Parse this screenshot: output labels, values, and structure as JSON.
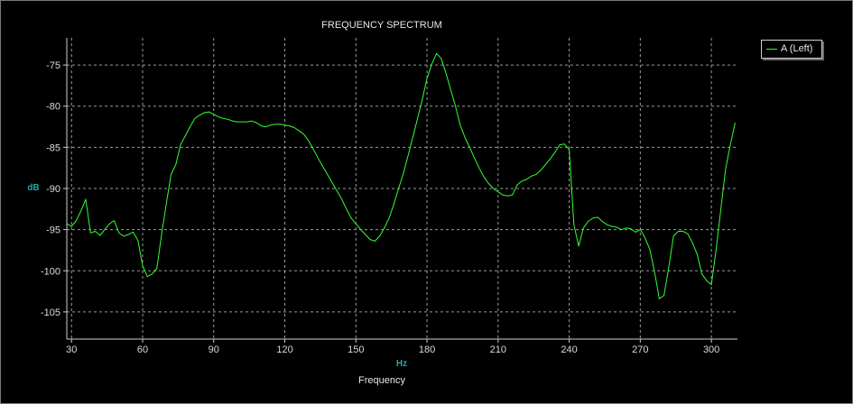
{
  "chart_data": {
    "type": "line",
    "title": "FREQUENCY SPECTRUM",
    "xlabel": "Frequency",
    "xunit": "Hz",
    "ylabel": "dB",
    "xlim": [
      28,
      311
    ],
    "ylim": [
      -108.3,
      -71.7
    ],
    "grid": true,
    "legend_position": "top-right",
    "xticks": [
      30,
      60,
      90,
      120,
      150,
      180,
      210,
      240,
      270,
      300
    ],
    "yticks": [
      -75,
      -80,
      -85,
      -90,
      -95,
      -100,
      -105
    ],
    "colors": {
      "series": "#33ff33",
      "axis_text": "#dcdcdc",
      "unit_text": "#2aa6a6",
      "grid": "#9a9a9a"
    },
    "series": [
      {
        "name": "A (Left)",
        "x": [
          28,
          30,
          32,
          34,
          36,
          38,
          40,
          42,
          44,
          46,
          48,
          50,
          52,
          54,
          56,
          58,
          60,
          62,
          64,
          66,
          68,
          70,
          72,
          74,
          76,
          78,
          80,
          82,
          84,
          86,
          88,
          90,
          92,
          94,
          96,
          98,
          100,
          102,
          104,
          106,
          108,
          110,
          112,
          114,
          116,
          118,
          120,
          122,
          124,
          126,
          128,
          130,
          132,
          134,
          136,
          138,
          140,
          142,
          144,
          146,
          148,
          150,
          152,
          154,
          156,
          158,
          160,
          162,
          164,
          166,
          168,
          170,
          172,
          174,
          176,
          178,
          180,
          182,
          184,
          186,
          188,
          190,
          192,
          194,
          196,
          198,
          200,
          202,
          204,
          206,
          208,
          210,
          212,
          214,
          216,
          218,
          220,
          222,
          224,
          226,
          228,
          230,
          232,
          234,
          236,
          238,
          240,
          242,
          244,
          246,
          248,
          250,
          252,
          254,
          256,
          258,
          260,
          262,
          264,
          266,
          268,
          270,
          272,
          274,
          276,
          278,
          280,
          282,
          284,
          286,
          288,
          290,
          292,
          294,
          296,
          298,
          300,
          302,
          304,
          306,
          308,
          310
        ],
        "values": [
          -94.3,
          -94.6,
          -93.9,
          -92.7,
          -91.3,
          -95.4,
          -95.2,
          -95.7,
          -95.0,
          -94.3,
          -93.9,
          -95.4,
          -95.8,
          -95.6,
          -95.3,
          -96.3,
          -99.4,
          -100.7,
          -100.4,
          -99.7,
          -95.6,
          -91.8,
          -88.3,
          -87.1,
          -84.7,
          -83.6,
          -82.5,
          -81.5,
          -81.1,
          -80.8,
          -80.7,
          -81.0,
          -81.3,
          -81.5,
          -81.6,
          -81.8,
          -81.9,
          -81.9,
          -81.9,
          -81.8,
          -82.0,
          -82.4,
          -82.5,
          -82.3,
          -82.2,
          -82.2,
          -82.3,
          -82.4,
          -82.6,
          -83.0,
          -83.4,
          -84.2,
          -85.2,
          -86.3,
          -87.3,
          -88.3,
          -89.3,
          -90.3,
          -91.3,
          -92.5,
          -93.6,
          -94.3,
          -95.0,
          -95.6,
          -96.2,
          -96.4,
          -95.8,
          -94.8,
          -93.6,
          -91.9,
          -90.0,
          -88.2,
          -86.0,
          -83.8,
          -81.5,
          -79.2,
          -76.6,
          -74.9,
          -73.6,
          -74.2,
          -76.0,
          -78.0,
          -80.0,
          -82.3,
          -83.8,
          -85.0,
          -86.3,
          -87.5,
          -88.6,
          -89.4,
          -90.0,
          -90.4,
          -90.8,
          -90.9,
          -90.8,
          -89.6,
          -89.1,
          -88.9,
          -88.5,
          -88.3,
          -87.8,
          -87.1,
          -86.4,
          -85.6,
          -84.7,
          -84.6,
          -85.3,
          -94.4,
          -97.0,
          -94.8,
          -94.0,
          -93.6,
          -93.5,
          -94.0,
          -94.4,
          -94.6,
          -94.7,
          -95.0,
          -94.8,
          -94.9,
          -95.3,
          -95.0,
          -96.0,
          -97.4,
          -100.1,
          -103.4,
          -103.0,
          -99.6,
          -95.8,
          -95.2,
          -95.2,
          -95.5,
          -96.6,
          -98.0,
          -100.4,
          -101.2,
          -101.7,
          -97.4,
          -92.5,
          -87.6,
          -84.7,
          -82.0
        ]
      }
    ]
  }
}
